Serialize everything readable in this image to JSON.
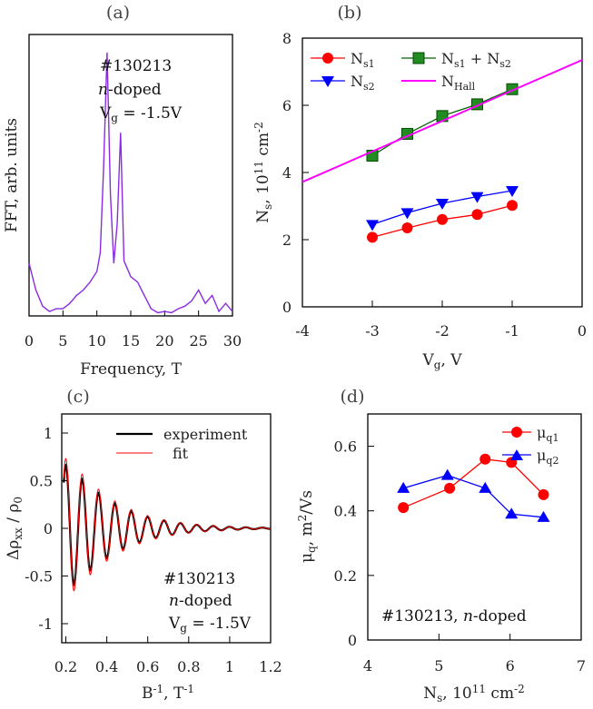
{
  "chart_data": [
    {
      "panel": "(a)",
      "type": "line",
      "xlabel": "Frequency, T",
      "ylabel": "FFT, arb. units",
      "xlim": [
        0,
        30
      ],
      "ylim": [
        0,
        1
      ],
      "xticks": [
        "0",
        "5",
        "10",
        "15",
        "20",
        "25",
        "30"
      ],
      "annotation": [
        "#130213",
        "n-doped",
        "Vg = -1.5V"
      ],
      "color": "#8a2be2",
      "series": [
        {
          "x": [
            0,
            1,
            2,
            3,
            4,
            5,
            6,
            7,
            8,
            9,
            10,
            10.5,
            11,
            11.5,
            12,
            12.5,
            13,
            13.5,
            14,
            15,
            16,
            17,
            18,
            19,
            20,
            21,
            22,
            23,
            24,
            25,
            26,
            27,
            28,
            29,
            30
          ],
          "y": [
            0.19,
            0.09,
            0.03,
            0.01,
            0.02,
            0.02,
            0.04,
            0.07,
            0.09,
            0.12,
            0.16,
            0.23,
            0.55,
            0.98,
            0.45,
            0.19,
            0.34,
            0.68,
            0.2,
            0.14,
            0.12,
            0.07,
            0.02,
            0.005,
            0.01,
            0.005,
            0.02,
            0.03,
            0.05,
            0.09,
            0.04,
            0.07,
            0.01,
            0.04,
            0.01
          ]
        }
      ]
    },
    {
      "panel": "(b)",
      "type": "scatter",
      "xlabel": "Vg, V",
      "ylabel": "Ns, 10^11 cm^-2",
      "xlim": [
        -4,
        0
      ],
      "ylim": [
        0,
        8
      ],
      "xticks": [
        "-4",
        "-3",
        "-2",
        "-1",
        "0"
      ],
      "yticks": [
        "0",
        "2",
        "4",
        "6",
        "8"
      ],
      "legend": [
        "Ns1",
        "Ns2",
        "Ns1 + Ns2",
        "NHall"
      ],
      "series": [
        {
          "name": "Ns1",
          "color": "#ff0000",
          "marker": "circle",
          "x": [
            -3,
            -2.5,
            -2,
            -1.5,
            -1
          ],
          "y": [
            2.07,
            2.35,
            2.6,
            2.75,
            3.02
          ]
        },
        {
          "name": "Ns2",
          "color": "#0000ff",
          "marker": "triangle-down",
          "x": [
            -3,
            -2.5,
            -2,
            -1.5,
            -1
          ],
          "y": [
            2.45,
            2.8,
            3.08,
            3.28,
            3.46
          ]
        },
        {
          "name": "Ns1 + Ns2",
          "color": "#006400",
          "marker": "square",
          "x": [
            -3,
            -2.5,
            -2,
            -1.5,
            -1
          ],
          "y": [
            4.5,
            5.15,
            5.68,
            6.03,
            6.48
          ]
        },
        {
          "name": "NHall",
          "color": "#ff00ff",
          "marker": "none",
          "x": [
            -4,
            0
          ],
          "y": [
            3.72,
            7.35
          ]
        }
      ]
    },
    {
      "panel": "(c)",
      "type": "line",
      "xlabel": "B^-1, T^-1",
      "ylabel": "Δρxx / ρ0",
      "xlim": [
        0.18,
        1.2
      ],
      "ylim": [
        -1.2,
        1.2
      ],
      "xticks": [
        "0.2",
        "0.4",
        "0.6",
        "0.8",
        "1",
        "1.2"
      ],
      "yticks": [
        "-1",
        "-0.5",
        "0",
        "0.5",
        "1"
      ],
      "legend": [
        "experiment",
        "fit"
      ],
      "annotation": [
        "#130213",
        "n-doped",
        "Vg = -1.5V"
      ],
      "series": [
        {
          "name": "experiment",
          "color": "#000000",
          "model": {
            "amplitude": 1.18,
            "damping": 0.115,
            "frequency": 12.5,
            "phase_offset": -0.32
          }
        },
        {
          "name": "fit",
          "color": "#ff0000",
          "model": {
            "amplitude": 1.3,
            "damping": 0.115,
            "frequency": 12.5,
            "phase_offset": -0.32
          }
        }
      ]
    },
    {
      "panel": "(d)",
      "type": "line",
      "xlabel": "Ns, 10^11 cm^-2",
      "ylabel": "μq, m^2/Vs",
      "xlim": [
        4,
        7
      ],
      "ylim": [
        0,
        0.7
      ],
      "xticks": [
        "4",
        "5",
        "6",
        "7"
      ],
      "yticks": [
        "0",
        "0.2",
        "0.4",
        "0.6"
      ],
      "legend": [
        "μq1",
        "μq2"
      ],
      "annotation": [
        "#130213, n-doped"
      ],
      "series": [
        {
          "name": "μq1",
          "color": "#ff0000",
          "marker": "circle",
          "x": [
            4.5,
            5.15,
            5.65,
            6.02,
            6.47
          ],
          "y": [
            0.41,
            0.47,
            0.56,
            0.55,
            0.45
          ]
        },
        {
          "name": "μq2",
          "color": "#0000ff",
          "marker": "triangle-up",
          "x": [
            4.5,
            5.12,
            5.65,
            6.02,
            6.47
          ],
          "y": [
            0.47,
            0.51,
            0.47,
            0.39,
            0.38
          ]
        }
      ]
    }
  ]
}
